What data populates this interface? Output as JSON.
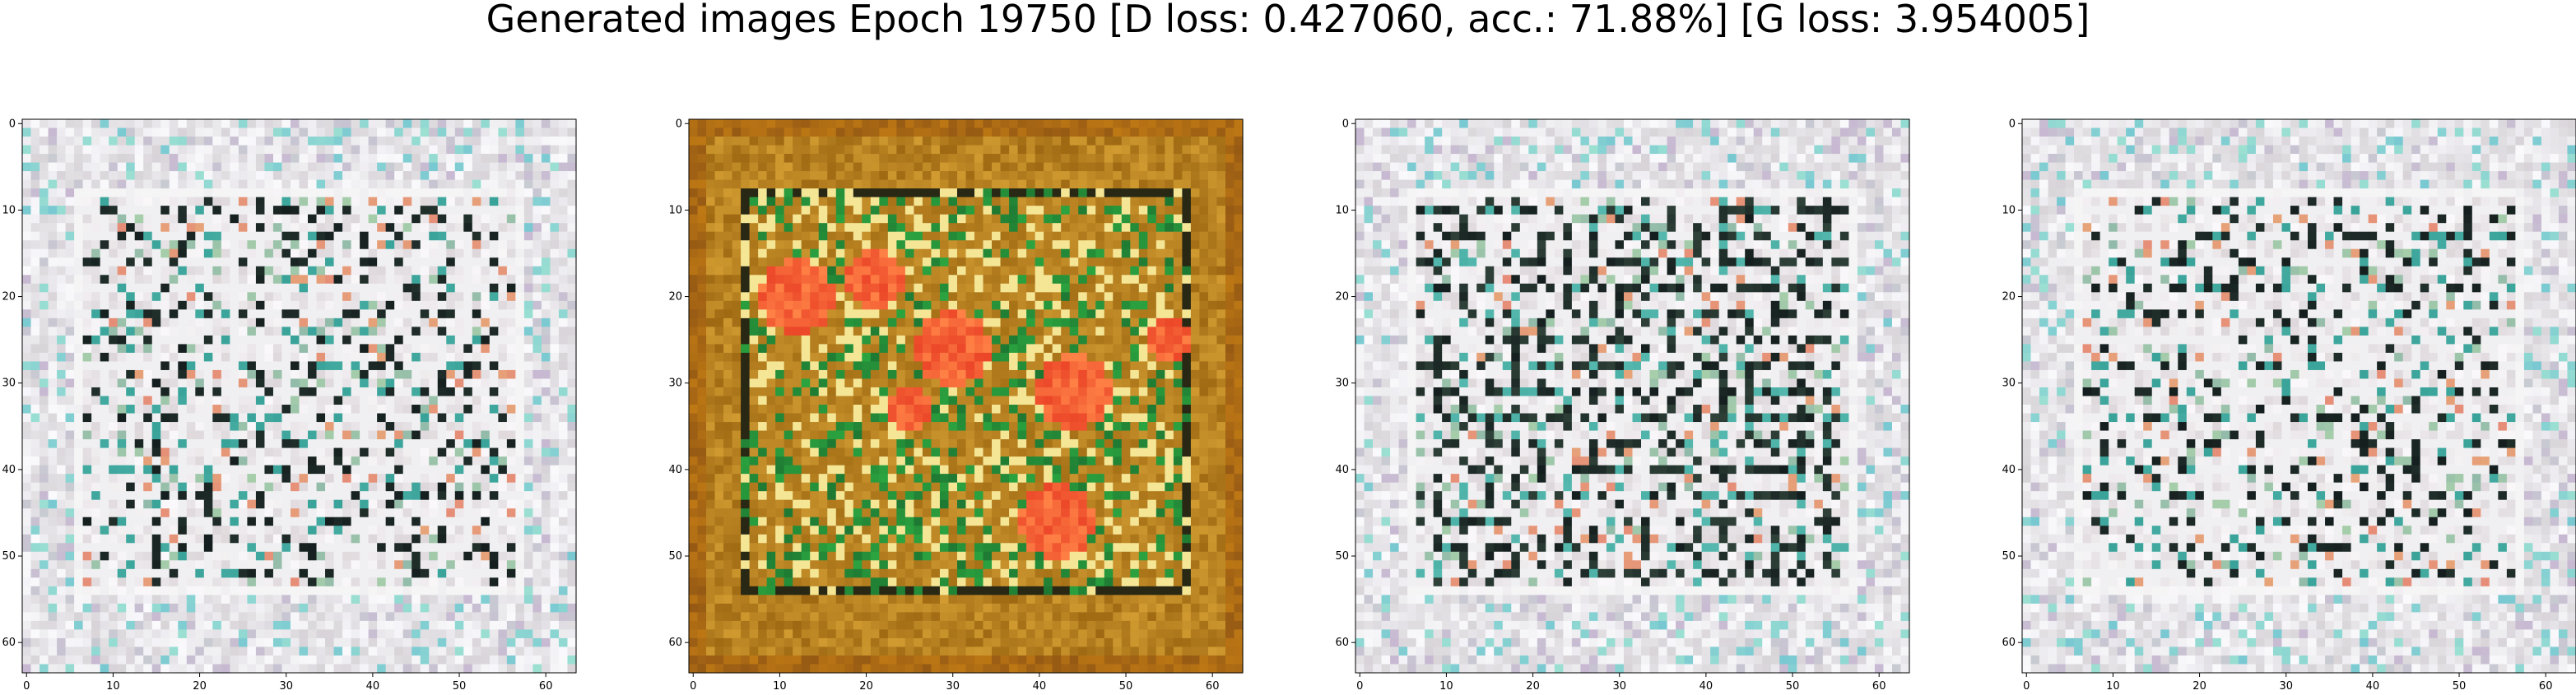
{
  "title": "Generated images Epoch 19750 [D loss: 0.427060, acc.: 71.88%] [G loss: 3.954005]",
  "panels": [
    {
      "style": "pale-grid",
      "tint": "#dcd6d8"
    },
    {
      "style": "warm-red-green",
      "tint": "#b8821f"
    },
    {
      "style": "dark-grid",
      "tint": "#d8d2d4"
    },
    {
      "style": "pale-grid",
      "tint": "#dedade"
    }
  ],
  "axes": {
    "range": [
      0,
      64
    ],
    "x_ticks": [
      "0",
      "10",
      "20",
      "30",
      "40",
      "50",
      "60"
    ],
    "y_ticks": [
      "0",
      "10",
      "20",
      "30",
      "40",
      "50",
      "60"
    ]
  }
}
